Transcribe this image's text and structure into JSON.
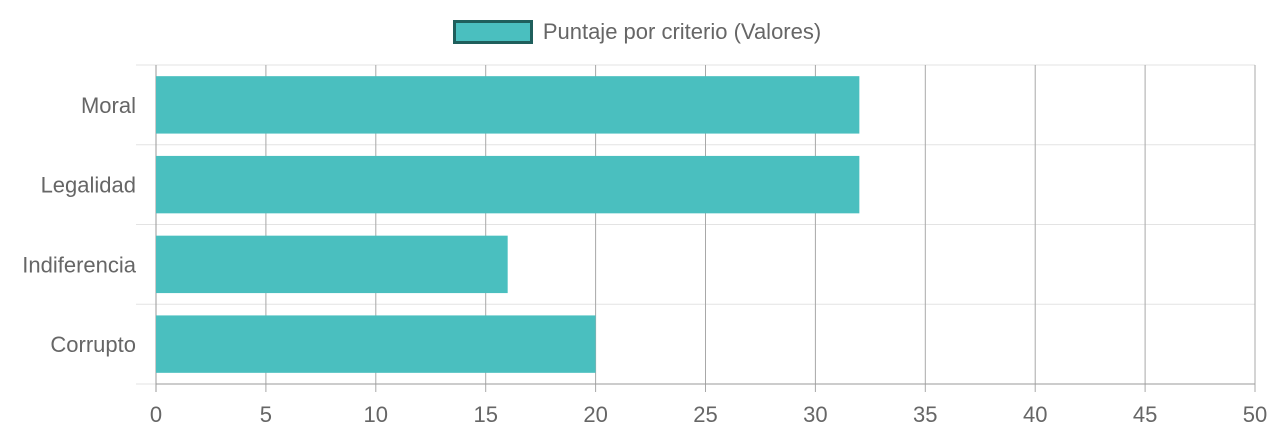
{
  "chart_data": {
    "type": "bar",
    "orientation": "horizontal",
    "categories": [
      "Moral",
      "Legalidad",
      "Indiferencia",
      "Corrupto"
    ],
    "series": [
      {
        "name": "Puntaje por criterio (Valores)",
        "values": [
          32,
          32,
          16,
          20
        ]
      }
    ],
    "xlim": [
      0,
      50
    ],
    "xticks": [
      "0",
      "5",
      "10",
      "15",
      "20",
      "25",
      "30",
      "35",
      "40",
      "45",
      "50"
    ],
    "grid": true,
    "legend_position": "top-center",
    "colors": {
      "bar_fill": "#4abfbf",
      "legend_border": "#1f5f5c",
      "text": "#666666"
    }
  }
}
